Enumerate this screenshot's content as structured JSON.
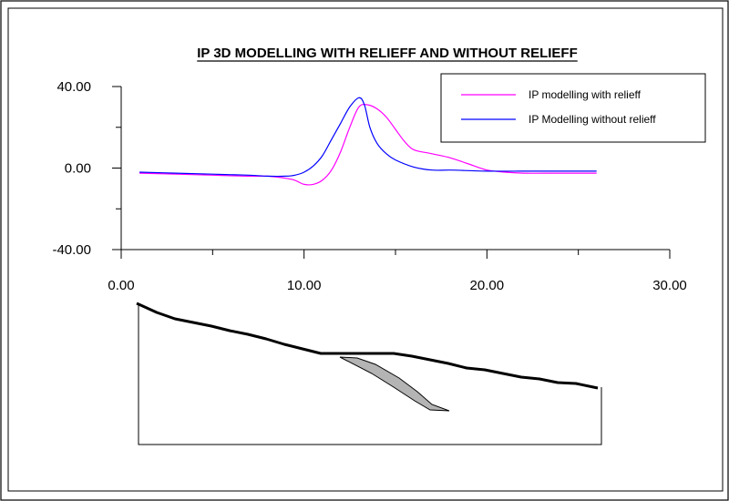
{
  "colors": {
    "background": "#ffffff",
    "with_relief": "#ff00ff",
    "without_relief": "#0000ff",
    "body_fill": "#b4b4b4"
  },
  "chart_data": {
    "type": "line",
    "title": "IP 3D MODELLING WITH RELIEFF AND WITHOUT RELIEFF",
    "xlabel": "",
    "ylabel": "",
    "xlim": [
      0,
      30
    ],
    "ylim": [
      -40,
      40
    ],
    "x_ticks": [
      "0.00",
      "10.00",
      "20.00",
      "30.00"
    ],
    "y_ticks": [
      "40.00",
      "0.00",
      "-40.00"
    ],
    "legend_position": "top-right",
    "grid": false,
    "series": [
      {
        "name": "IP modelling with relieff",
        "color": "#ff00ff",
        "x": [
          1,
          3,
          5,
          7,
          8,
          9,
          9.5,
          10,
          10.5,
          11,
          11.5,
          12,
          12.5,
          13,
          13.5,
          14,
          14.5,
          15,
          15.5,
          16,
          17,
          18,
          19,
          20,
          21,
          22,
          24,
          26
        ],
        "y": [
          -2.5,
          -3,
          -3.5,
          -4,
          -4,
          -5,
          -6,
          -8,
          -8,
          -6,
          -1,
          8,
          20,
          30,
          31,
          29,
          25,
          19,
          13,
          9,
          7,
          5,
          2,
          -1,
          -2,
          -2.5,
          -2.5,
          -2.5
        ]
      },
      {
        "name": "IP Modelling without relieff",
        "color": "#0000ff",
        "x": [
          1,
          3,
          5,
          7,
          8,
          9,
          9.5,
          10,
          10.5,
          11,
          11.5,
          12,
          12.5,
          13,
          13.3,
          13.6,
          14,
          14.5,
          15,
          16,
          17,
          18,
          20,
          22,
          24,
          26
        ],
        "y": [
          -2,
          -2.5,
          -3,
          -3.5,
          -4,
          -4,
          -3.5,
          -2,
          1,
          6,
          14,
          22,
          30,
          34.5,
          31,
          20,
          12,
          7,
          4,
          0.5,
          -1,
          -1,
          -1.5,
          -1.5,
          -1.5,
          -1.5
        ]
      }
    ]
  }
}
